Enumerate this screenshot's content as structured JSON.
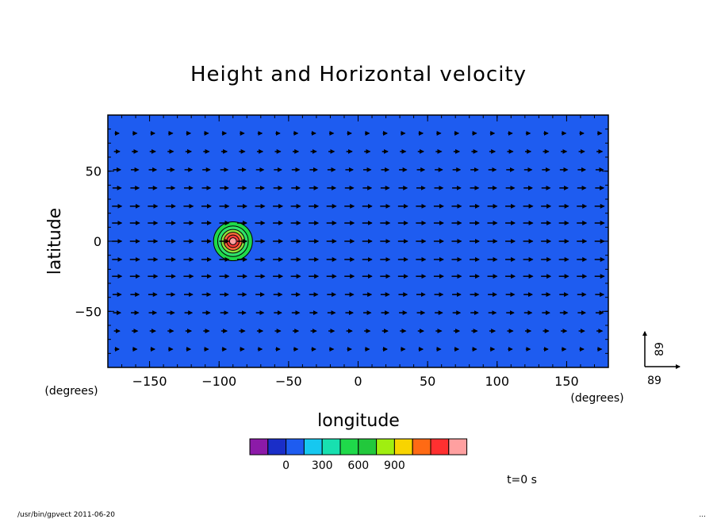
{
  "chart_data": {
    "type": "heatmap",
    "title": "Height and Horizontal velocity",
    "xlabel": "longitude",
    "ylabel": "latitude",
    "x_unit": "(degrees)",
    "y_unit": "(degrees)",
    "xlim": [
      -180,
      180
    ],
    "ylim": [
      -90,
      90
    ],
    "x_ticks": [
      -150,
      -100,
      -50,
      0,
      50,
      100,
      150
    ],
    "x_tick_labels": [
      "−150",
      "−100",
      "−50",
      "0",
      "50",
      "100",
      "150"
    ],
    "y_ticks": [
      50,
      0,
      -50
    ],
    "y_tick_labels": [
      "50",
      "0",
      "−50"
    ],
    "background_value_color": "#1e5cf0",
    "height_feature": {
      "center_lon": -90,
      "center_lat": 0,
      "radius_deg": 14,
      "levels": [
        {
          "r": 14,
          "color": "#1fd94a"
        },
        {
          "r": 11,
          "color": "#2fe26a"
        },
        {
          "r": 8.5,
          "color": "#8ee23a"
        },
        {
          "r": 6.5,
          "color": "#ff6a3a"
        },
        {
          "r": 4.5,
          "color": "#ff3a3a"
        },
        {
          "r": 2.5,
          "color": "#ffa0a0"
        }
      ]
    },
    "vector_field": {
      "u_description": "eastward",
      "lats": [
        77,
        64,
        51,
        38,
        25,
        13,
        0,
        -13,
        -25,
        -38,
        -51,
        -64,
        -77
      ],
      "lons_count": 28,
      "magnitude_factor": [
        0.45,
        0.6,
        0.8,
        0.9,
        1.0,
        1.0,
        1.0,
        1.0,
        1.0,
        0.9,
        0.8,
        0.6,
        0.45
      ]
    },
    "reference_vector": {
      "u": 89,
      "v": 89,
      "u_label": "89",
      "v_label": "89"
    },
    "colorbar": {
      "colors": [
        "#8c1aa8",
        "#1a2ec8",
        "#1e5cf0",
        "#16c8f0",
        "#18e0b0",
        "#1fd94a",
        "#22c83c",
        "#a0ee10",
        "#f8d400",
        "#ff6a14",
        "#ff3030",
        "#ffa0a0"
      ],
      "tick_labels": [
        "0",
        "300",
        "600",
        "900"
      ],
      "tick_positions": [
        2,
        4,
        6,
        8
      ]
    },
    "time_label": "t=0 s"
  },
  "footer": {
    "left": "/usr/bin/gpvect  2011-06-20",
    "right": "..."
  }
}
